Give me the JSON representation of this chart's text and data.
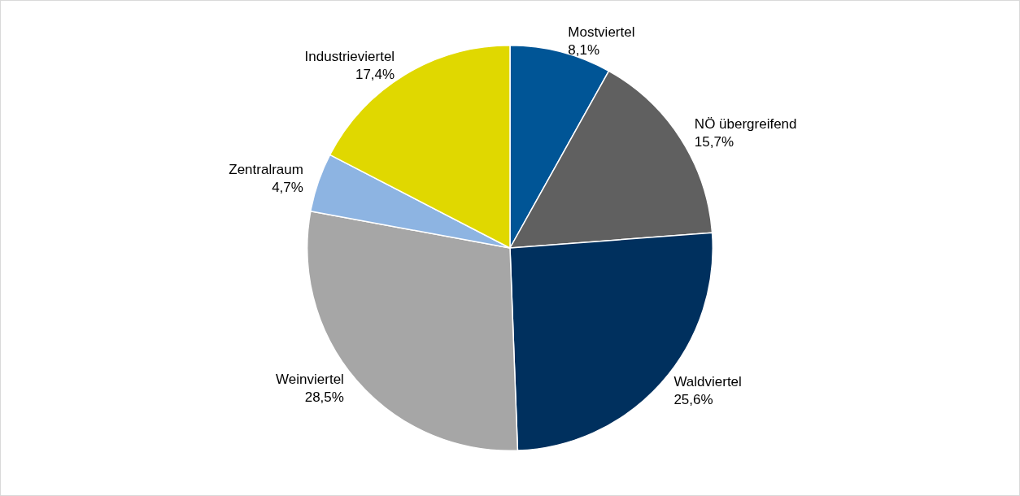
{
  "chart_data": {
    "type": "pie",
    "categories": [
      "Mostviertel",
      "NÖ übergreifend",
      "Waldviertel",
      "Weinviertel",
      "Zentralraum",
      "Industrieviertel"
    ],
    "values": [
      8.1,
      15.7,
      25.6,
      28.5,
      4.7,
      17.4
    ],
    "value_labels": [
      "8,1%",
      "15,7%",
      "25,6%",
      "28,5%",
      "4,7%",
      "17,4%"
    ],
    "colors": [
      "#005596",
      "#606060",
      "#00305e",
      "#a6a6a6",
      "#8db4e2",
      "#e0d800"
    ],
    "legend": false
  }
}
